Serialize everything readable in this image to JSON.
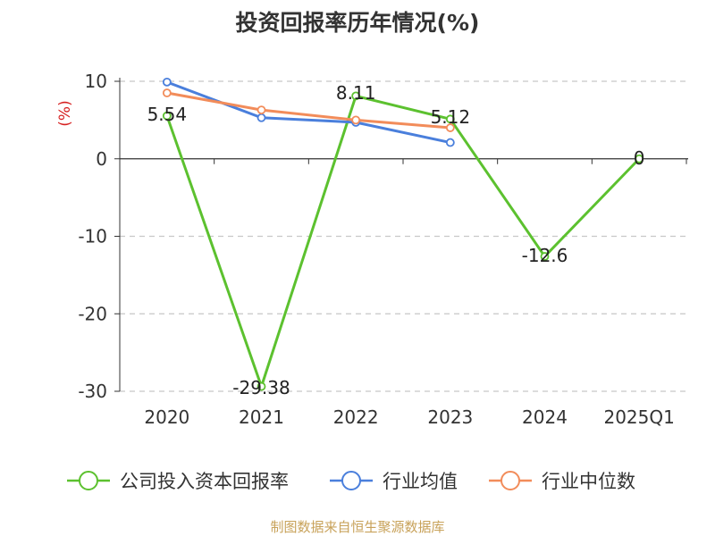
{
  "chart_data": {
    "type": "line",
    "title": "投资回报率历年情况(%)",
    "ylabel": "(%)",
    "categories": [
      "2020",
      "2021",
      "2022",
      "2023",
      "2024",
      "2025Q1"
    ],
    "ylim": [
      -30,
      10
    ],
    "yticks": [
      10,
      0,
      -10,
      -20,
      -30
    ],
    "grid": true,
    "legend_position": "bottom",
    "series": [
      {
        "name": "公司投入资本回报率",
        "color": "#5cc12f",
        "values": [
          5.54,
          -29.38,
          8.11,
          5.12,
          -12.6,
          0
        ],
        "labels": [
          "5.54",
          "-29.38",
          "8.11",
          "5.12",
          "-12.6",
          "0"
        ]
      },
      {
        "name": "行业均值",
        "color": "#4a7fdc",
        "values": [
          9.9,
          5.3,
          4.7,
          2.1,
          null,
          null
        ]
      },
      {
        "name": "行业中位数",
        "color": "#f28c5a",
        "values": [
          8.5,
          6.3,
          5.0,
          4.0,
          null,
          null
        ]
      }
    ]
  },
  "source": "制图数据来自恒生聚源数据库"
}
